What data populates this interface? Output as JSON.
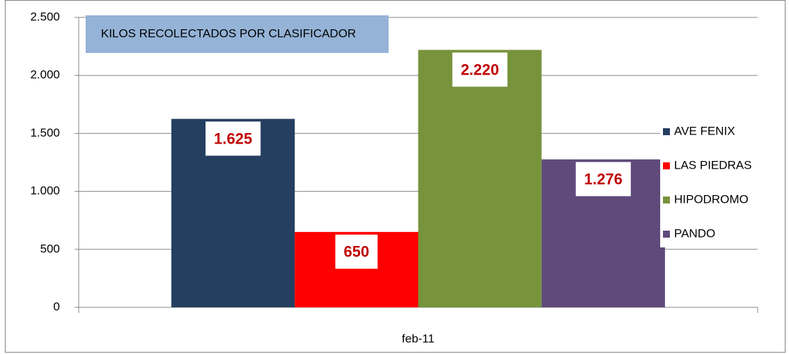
{
  "chart_data": {
    "type": "bar",
    "title": "KILOS RECOLECTADOS POR CLASIFICADOR",
    "categories": [
      "feb-11"
    ],
    "series": [
      {
        "name": "AVE FENIX",
        "color": "#243f60",
        "values": [
          1625
        ],
        "value_labels": [
          "1.625"
        ]
      },
      {
        "name": "LAS PIEDRAS",
        "color": "#ff0000",
        "values": [
          650
        ],
        "value_labels": [
          "650"
        ]
      },
      {
        "name": "HIPODROMO",
        "color": "#77933c",
        "values": [
          2220
        ],
        "value_labels": [
          "2.220"
        ]
      },
      {
        "name": "PANDO",
        "color": "#604a7b",
        "values": [
          1276
        ],
        "value_labels": [
          "1.276"
        ]
      }
    ],
    "ylim": [
      0,
      2500
    ],
    "yticks": [
      0,
      500,
      {
        "value": 1000,
        "label": "1.000"
      },
      {
        "value": 1500,
        "label": "1.500"
      },
      {
        "value": 2000,
        "label": "2.000"
      },
      {
        "value": 2500,
        "label": "2.500"
      }
    ],
    "grid": true,
    "legend": "right"
  }
}
